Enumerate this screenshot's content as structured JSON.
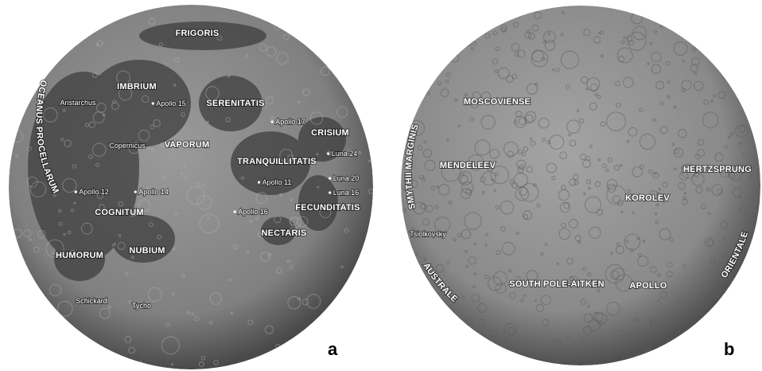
{
  "panels": [
    {
      "letter": "a",
      "labels": [
        "FRIGORIS",
        "IMBRIUM",
        "Aristarchus",
        "Apollo 15",
        "SERENITATIS",
        "Apollo 17",
        "CRISIUM",
        "Copernicus",
        "VAPORUM",
        "Luna 24",
        "TRANQUILLITATIS",
        "Luna 20",
        "Apollo 11",
        "Apollo 12",
        "Apollo 14",
        "Luna 16",
        "COGNITUM",
        "Apollo 16",
        "FECUNDITATIS",
        "NECTARIS",
        "HUMORUM",
        "NUBIUM",
        "Schickard",
        "Tycho"
      ],
      "curved_labels": [
        "OCEANUS PROCELLARUM"
      ]
    },
    {
      "letter": "b",
      "labels": [
        "MOSCOVIENSE",
        "MENDELEEV",
        "HERTZSPRUNG",
        "KOROLEV",
        "Tsiolkovsky",
        "SOUTH POLE-AITKEN",
        "APOLLO"
      ],
      "curved_labels": [
        "SMYTHII MARGINIS",
        "ORIENTALE",
        "AUSTRALE"
      ]
    }
  ]
}
